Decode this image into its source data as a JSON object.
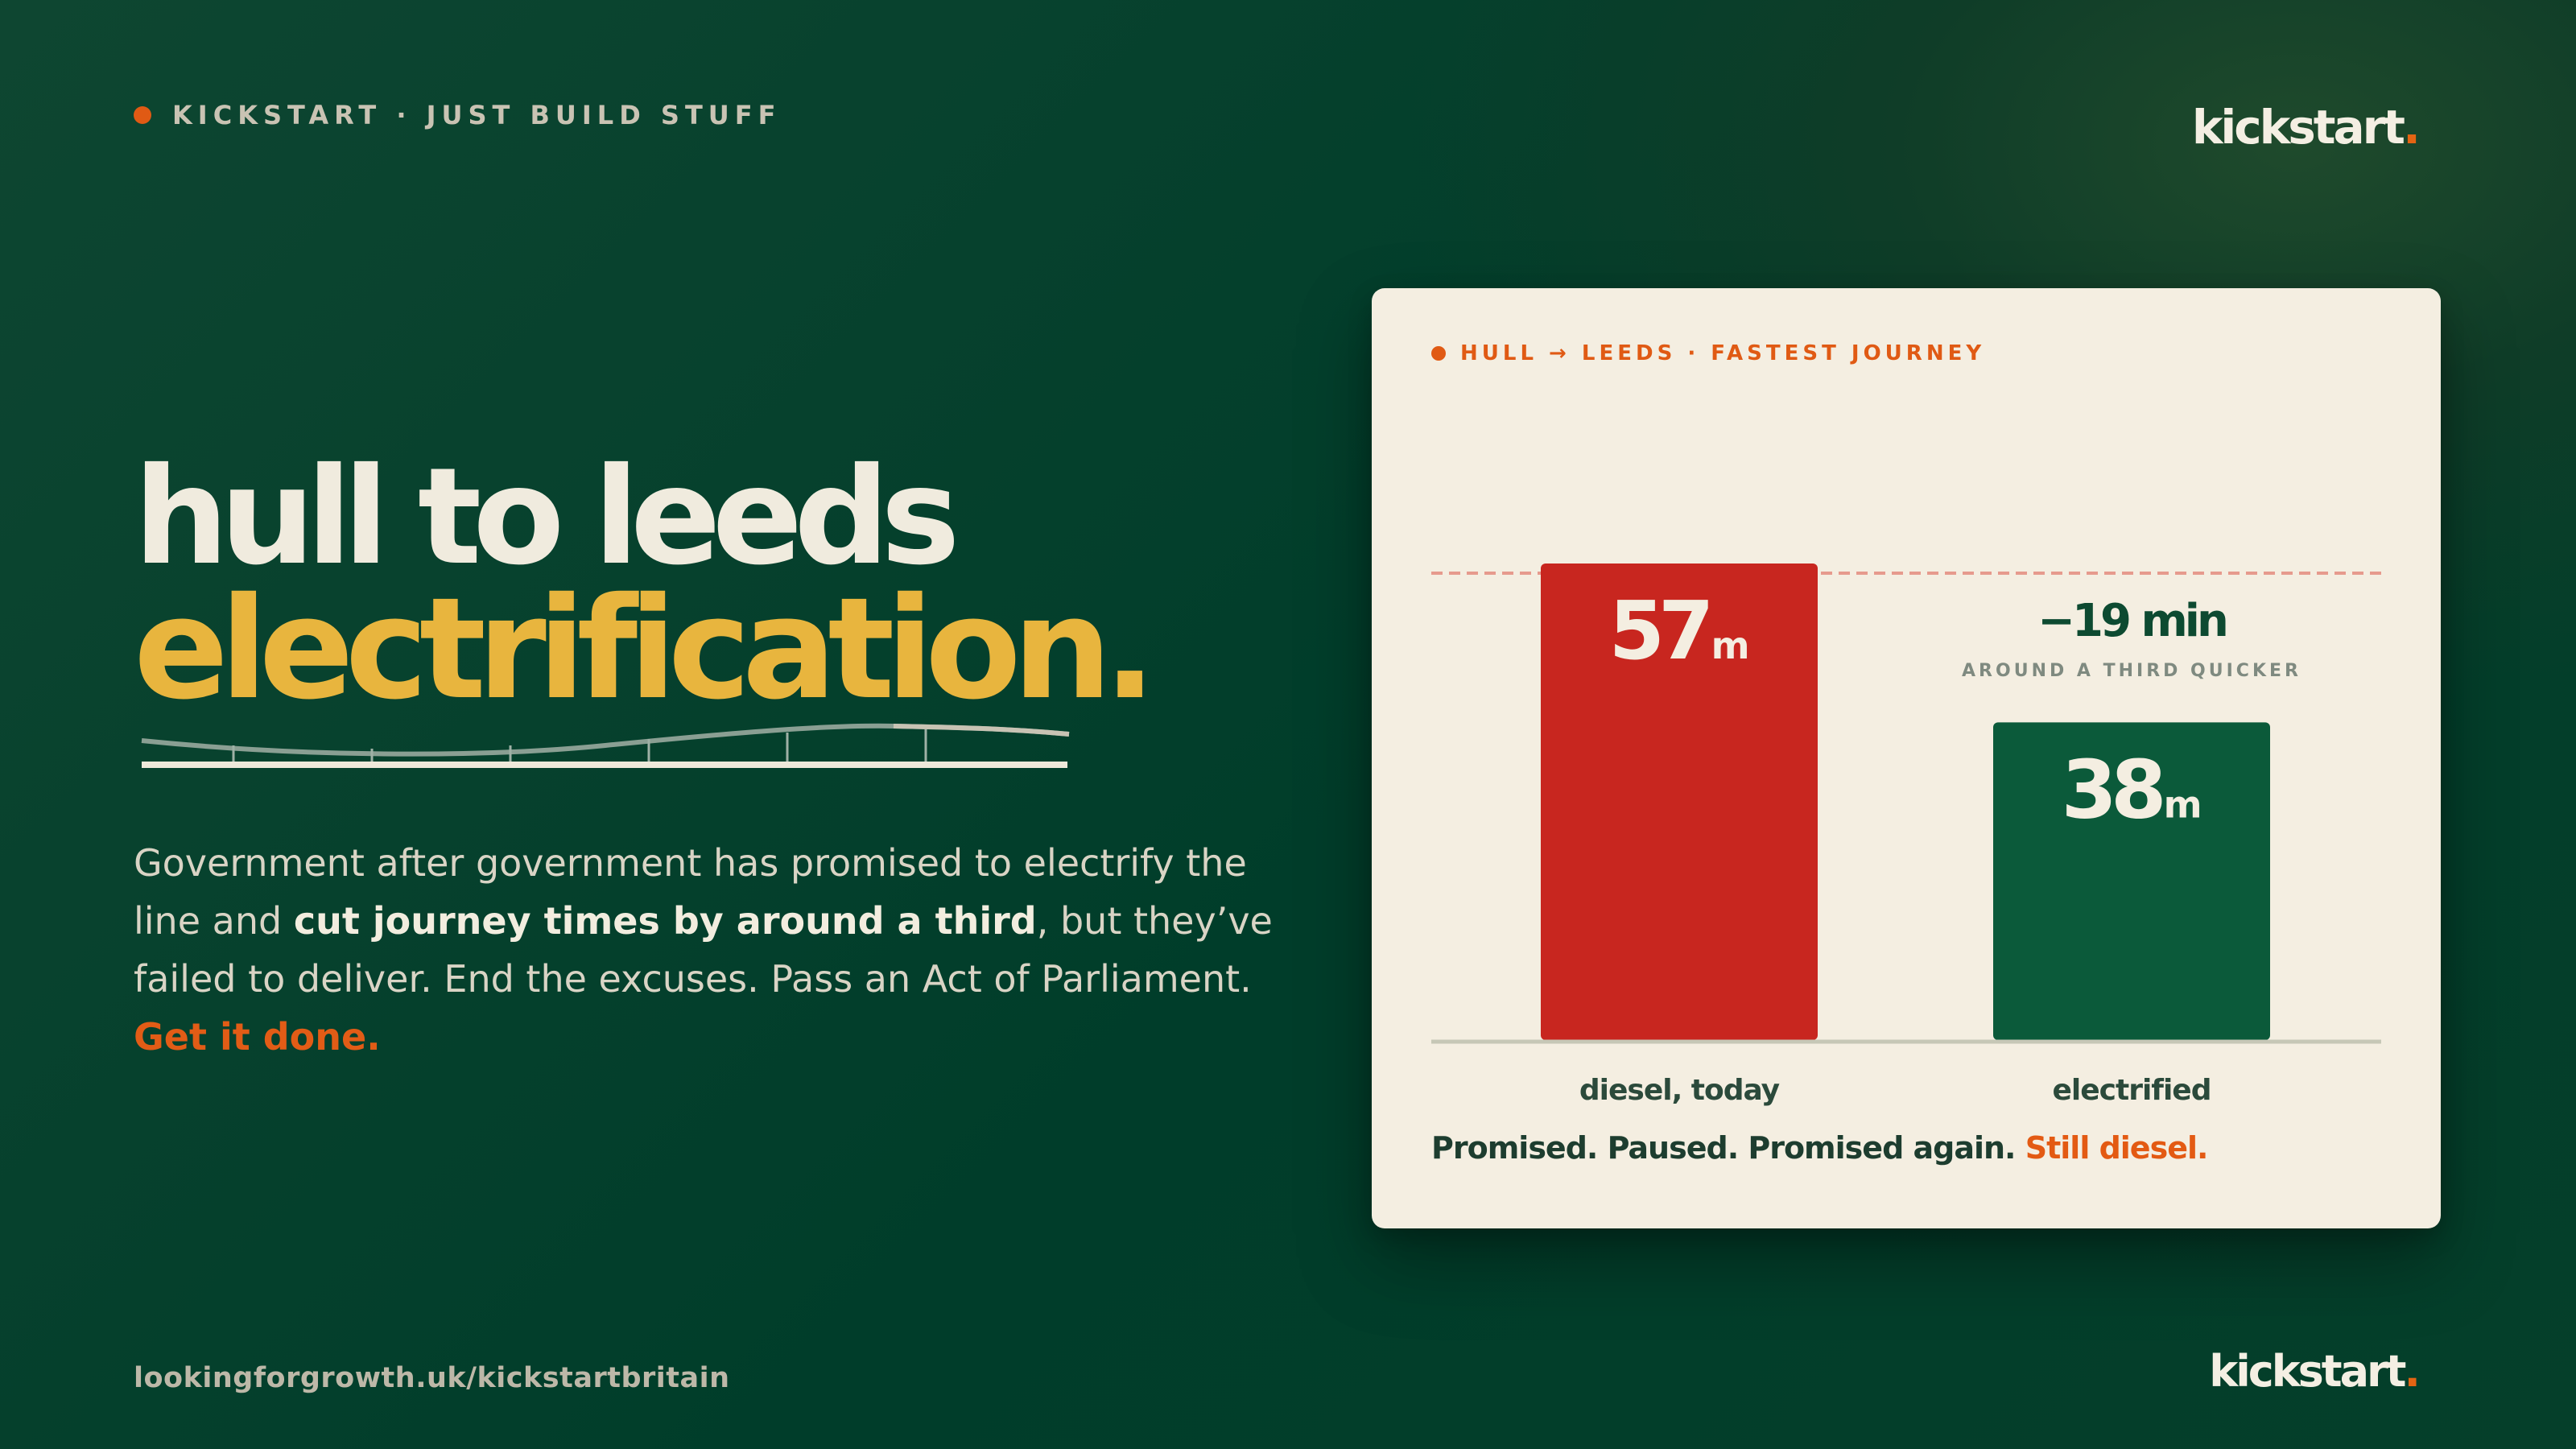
{
  "brand": {
    "eyebrow": "KICKSTART · JUST BUILD STUFF",
    "logo_text": "kickstart",
    "logo_dot": ".",
    "accent": "#e05a14"
  },
  "headline": {
    "line1": "hull to leeds",
    "line2": "electrification."
  },
  "body": {
    "part1": "Government after government has promised to electrify the line and ",
    "emphasis": "cut journey times by around a third",
    "part2": ", but they’ve failed to deliver. End the excuses. Pass an Act of Parliament. ",
    "cta": "Get it done."
  },
  "footer": {
    "url": "lookingforgrowth.uk/kickstartbritain"
  },
  "card": {
    "eyebrow": "HULL → LEEDS · FASTEST JOURNEY",
    "caption_plain": "Promised. Paused. Promised again. ",
    "caption_hot": "Still diesel."
  },
  "chart_data": {
    "type": "bar",
    "categories": [
      "diesel, today",
      "electrified"
    ],
    "values": [
      57,
      38
    ],
    "unit": "m",
    "ylim": [
      0,
      57
    ],
    "colors": [
      "#c8261f",
      "#0b5a3a"
    ],
    "reference_line": {
      "value": 57,
      "style": "dashed",
      "color": "#e69a8d"
    },
    "annotation": {
      "value": "−19 min",
      "sub": "AROUND A THIRD QUICKER"
    },
    "title": "",
    "xlabel": "",
    "ylabel": ""
  }
}
